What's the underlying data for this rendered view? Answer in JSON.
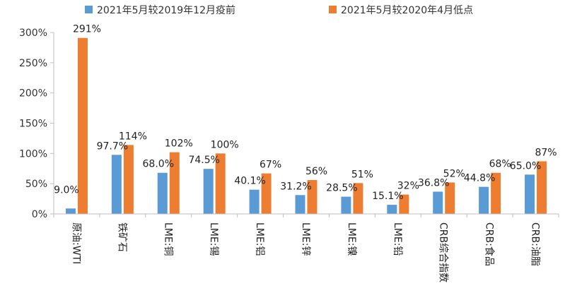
{
  "chart_data": {
    "type": "bar",
    "categories": [
      "原油:WTI",
      "铁矿石",
      "LME:铜",
      "LME:锡",
      "LME:铝",
      "LME:锌",
      "LME:镍",
      "LME:铅",
      "CRB综合指数",
      "CRB:食品",
      "CRB:油脂"
    ],
    "series": [
      {
        "name": "2021年5月较2019年12月疫前",
        "color": "#5B9BD5",
        "values": [
          9.0,
          97.7,
          68.0,
          74.5,
          40.1,
          31.2,
          28.5,
          15.1,
          36.8,
          44.8,
          65.0
        ],
        "labels": [
          "9.0%",
          "97.7%",
          "68.0%",
          "74.5%",
          "40.1%",
          "31.2%",
          "28.5%",
          "15.1%",
          "36.8%",
          "44.8%",
          "65.0%"
        ]
      },
      {
        "name": "2021年5月较2020年4月低点",
        "color": "#ED7D31",
        "values": [
          291,
          114,
          102,
          100,
          67,
          56,
          51,
          32,
          52,
          68,
          87
        ],
        "labels": [
          "291%",
          "114%",
          "102%",
          "100%",
          "67%",
          "56%",
          "51%",
          "32%",
          "52%",
          "68%",
          "87%"
        ]
      }
    ],
    "ylim": [
      0,
      300
    ],
    "yticks": [
      0,
      50,
      100,
      150,
      200,
      250,
      300
    ],
    "ytick_labels": [
      "0%",
      "50%",
      "100%",
      "150%",
      "200%",
      "250%",
      "300%"
    ],
    "legend_position": "top",
    "grid": false
  }
}
